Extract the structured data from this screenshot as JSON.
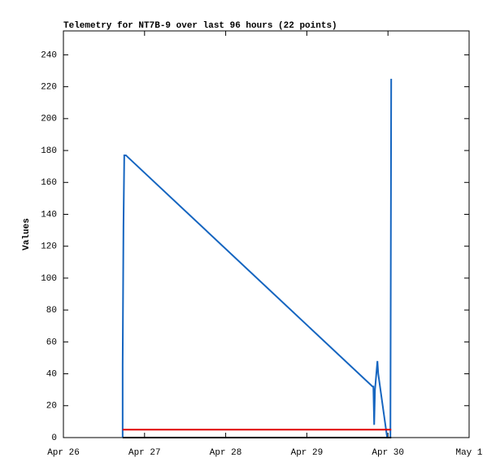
{
  "chart_data": {
    "type": "line",
    "title": "Telemetry for NT7B-9 over last 96 hours (22 points)",
    "ylabel": "Values",
    "xlim": [
      0,
      5
    ],
    "xticks": [
      {
        "value": 0,
        "label": "Apr 26"
      },
      {
        "value": 1,
        "label": "Apr 27"
      },
      {
        "value": 2,
        "label": "Apr 28"
      },
      {
        "value": 3,
        "label": "Apr 29"
      },
      {
        "value": 4,
        "label": "Apr 30"
      },
      {
        "value": 5,
        "label": "May 1"
      }
    ],
    "ylim": [
      0,
      255
    ],
    "yticks": [
      0,
      20,
      40,
      60,
      80,
      100,
      120,
      140,
      160,
      180,
      200,
      220,
      240
    ],
    "series": [
      {
        "color": "#1565c0",
        "x": [
          0.73,
          0.73,
          0.74,
          0.75,
          0.77,
          3.81,
          3.82,
          3.83,
          3.84,
          3.87,
          3.88,
          3.99,
          4.03,
          4.04
        ],
        "values": [
          0,
          45,
          132,
          177,
          177,
          32,
          32,
          8,
          30,
          48,
          40,
          0,
          0,
          225
        ]
      },
      {
        "color": "#e00000",
        "x": [
          0.73,
          4.04
        ],
        "values": [
          5,
          5
        ]
      },
      {
        "color": "#000000",
        "x": [
          0.73,
          4.04
        ],
        "values": [
          0,
          0
        ]
      }
    ]
  }
}
